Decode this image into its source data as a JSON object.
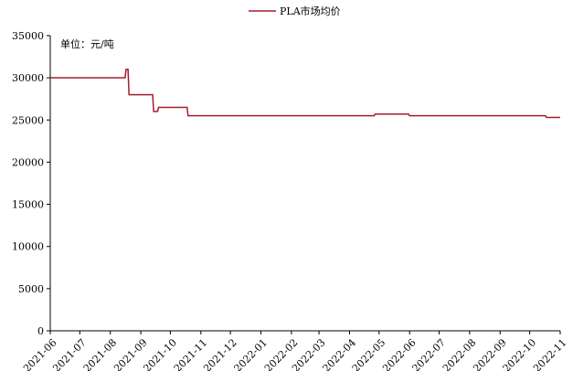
{
  "chart_data": {
    "type": "line",
    "legend": {
      "label": "PLA市场均价",
      "position": "top-center"
    },
    "unit_label": "单位：元/吨",
    "ylim": [
      0,
      35000
    ],
    "yticks": [
      0,
      5000,
      10000,
      15000,
      20000,
      25000,
      30000,
      35000
    ],
    "xlim": [
      "2021-06-01",
      "2022-11-01"
    ],
    "xticks": [
      "2021-06",
      "2021-07",
      "2021-08",
      "2021-09",
      "2021-10",
      "2021-11",
      "2021-12",
      "2022-01",
      "2022-02",
      "2022-03",
      "2022-04",
      "2022-05",
      "2022-06",
      "2022-07",
      "2022-08",
      "2022-09",
      "2022-10",
      "2022-11"
    ],
    "grid": false,
    "series": [
      {
        "name": "PLA市场均价",
        "color": "#a31d2e",
        "points": [
          [
            "2021-06-01",
            30000
          ],
          [
            "2021-08-16",
            30000
          ],
          [
            "2021-08-17",
            31000
          ],
          [
            "2021-08-19",
            31000
          ],
          [
            "2021-08-20",
            28000
          ],
          [
            "2021-09-13",
            28000
          ],
          [
            "2021-09-14",
            26000
          ],
          [
            "2021-09-18",
            26000
          ],
          [
            "2021-09-19",
            26500
          ],
          [
            "2021-10-18",
            26500
          ],
          [
            "2021-10-19",
            25500
          ],
          [
            "2022-04-26",
            25500
          ],
          [
            "2022-04-27",
            25700
          ],
          [
            "2022-05-31",
            25700
          ],
          [
            "2022-06-01",
            25500
          ],
          [
            "2022-10-17",
            25500
          ],
          [
            "2022-10-18",
            25300
          ],
          [
            "2022-11-01",
            25300
          ]
        ]
      }
    ]
  }
}
